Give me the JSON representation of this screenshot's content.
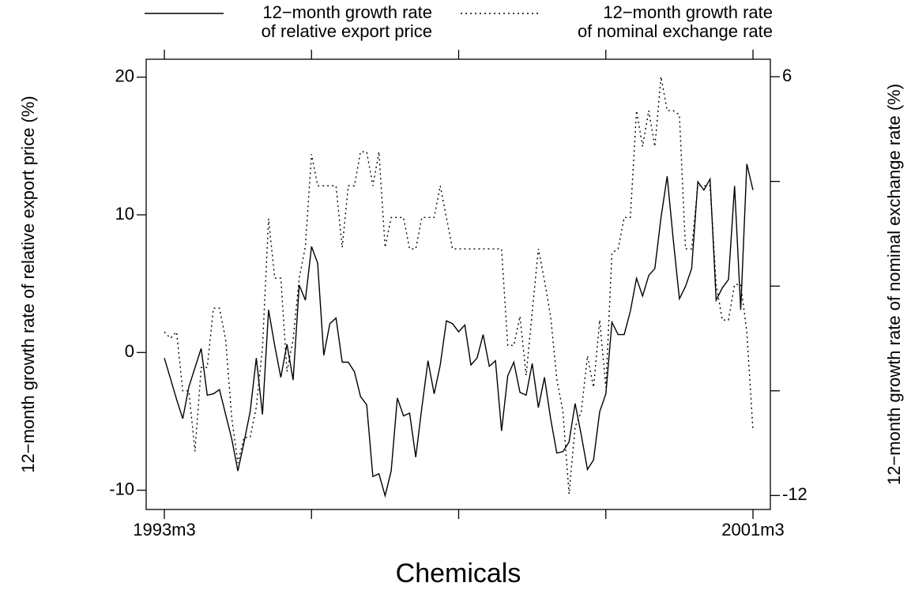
{
  "chart_data": {
    "type": "line",
    "title": "Chemicals",
    "ylabel": "12−month growth rate of relative export price (%)",
    "y2label": "12−month growth rate of nominal exchange rate (%)",
    "categories": [
      "1993m3",
      null,
      null,
      null,
      null,
      null,
      null,
      null,
      null,
      null,
      null,
      null,
      null,
      null,
      null,
      null,
      null,
      null,
      null,
      null,
      null,
      null,
      null,
      null,
      null,
      null,
      null,
      null,
      null,
      null,
      null,
      null,
      null,
      null,
      null,
      null,
      null,
      null,
      null,
      null,
      null,
      null,
      null,
      null,
      null,
      null,
      null,
      null,
      null,
      null,
      null,
      null,
      null,
      null,
      null,
      null,
      null,
      null,
      null,
      null,
      null,
      null,
      null,
      null,
      null,
      null,
      null,
      null,
      null,
      null,
      null,
      null,
      null,
      null,
      null,
      null,
      null,
      null,
      null,
      null,
      null,
      null,
      null,
      null,
      null,
      null,
      null,
      null,
      null,
      null,
      null,
      null,
      null,
      null,
      null,
      null,
      "2001m3"
    ],
    "ylim": [
      -11.4,
      21.3
    ],
    "yticks": [
      -10,
      0,
      10,
      20
    ],
    "y2lim": [
      -12.6,
      6.75
    ],
    "y2ticks": [
      -12,
      {
        "value": -7.5,
        "label": null
      },
      {
        "value": -3,
        "label": null
      },
      {
        "value": 1.5,
        "label": null
      },
      6
    ],
    "legend": "top",
    "series": [
      {
        "name": "12−month growth rate\nof relative export price",
        "color": "#000000",
        "line_style": "solid",
        "values": [
          -0.4,
          -1.9,
          -3.4,
          -4.8,
          -2.5,
          -1.1,
          0.3,
          -3.1,
          -3.0,
          -2.7,
          -4.5,
          -6.3,
          -8.6,
          -6.5,
          -4.3,
          -0.4,
          -4.5,
          3.1,
          0.5,
          -1.8,
          0.6,
          -2.0,
          4.9,
          3.8,
          7.7,
          6.5,
          -0.2,
          2.1,
          2.5,
          -0.7,
          -0.7,
          -1.4,
          -3.2,
          -3.8,
          -9.0,
          -8.8,
          -10.4,
          -8.6,
          -3.3,
          -4.6,
          -4.4,
          -7.6,
          -4.0,
          -0.6,
          -3.0,
          -0.9,
          2.3,
          2.1,
          1.5,
          2.0,
          -0.9,
          -0.4,
          1.3,
          -1.0,
          -0.6,
          -5.7,
          -1.7,
          -0.7,
          -2.9,
          -3.1,
          -0.8,
          -4.0,
          -1.8,
          -4.8,
          -7.3,
          -7.2,
          -6.5,
          -3.7,
          -6.0,
          -8.5,
          -7.8,
          -4.3,
          -3.0,
          2.2,
          1.3,
          1.3,
          3.0,
          5.4,
          4.1,
          5.6,
          6.1,
          9.8,
          12.8,
          8.2,
          3.9,
          4.8,
          6.1,
          12.4,
          11.8,
          12.6,
          3.8,
          4.7,
          5.3,
          12.1,
          3.1,
          13.7,
          11.8
        ]
      },
      {
        "name": "12−month growth rate\nof nominal exchange rate",
        "color": "#000000",
        "line_style": "dotted",
        "axis": "y2",
        "values": [
          -4.97,
          -5.24,
          -4.97,
          -7.5,
          -7.5,
          -10.1,
          -6.5,
          -6.5,
          -3.95,
          -3.95,
          -5.3,
          -8.7,
          -10.6,
          -9.5,
          -9.5,
          -8.2,
          -5.65,
          -0.1,
          -2.66,
          -2.66,
          -6.67,
          -5.3,
          -2.66,
          -1.3,
          2.67,
          1.31,
          1.31,
          1.31,
          1.31,
          -1.34,
          1.31,
          1.31,
          2.77,
          2.77,
          1.31,
          2.77,
          -1.34,
          -0.05,
          -0.05,
          -0.05,
          -1.4,
          -1.4,
          -0.05,
          -0.05,
          -0.05,
          1.31,
          -0.05,
          -1.4,
          -1.4,
          -1.4,
          -1.4,
          -1.4,
          -1.4,
          -1.4,
          -1.4,
          -1.4,
          -5.55,
          -5.55,
          -4.3,
          -6.84,
          -4.12,
          -1.4,
          -2.76,
          -4.3,
          -7.0,
          -8.37,
          -11.93,
          -9.05,
          -8.4,
          -6.0,
          -7.35,
          -4.46,
          -7.35,
          -1.57,
          -1.4,
          -0.05,
          -0.05,
          4.54,
          3.0,
          4.54,
          3.0,
          6.0,
          4.54,
          4.54,
          4.37,
          -1.4,
          -1.4,
          1.31,
          1.31,
          1.31,
          -2.93,
          -4.46,
          -4.46,
          -2.93,
          -2.93,
          -4.97,
          -9.2
        ]
      }
    ]
  }
}
